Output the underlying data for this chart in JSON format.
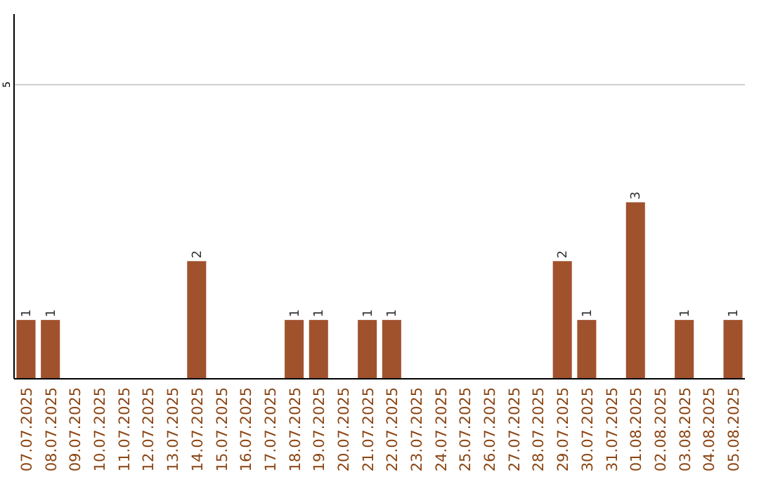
{
  "chart_data": {
    "type": "bar",
    "categories": [
      "07.07.2025",
      "08.07.2025",
      "09.07.2025",
      "10.07.2025",
      "11.07.2025",
      "12.07.2025",
      "13.07.2025",
      "14.07.2025",
      "15.07.2025",
      "16.07.2025",
      "17.07.2025",
      "18.07.2025",
      "19.07.2025",
      "20.07.2025",
      "21.07.2025",
      "22.07.2025",
      "23.07.2025",
      "24.07.2025",
      "25.07.2025",
      "26.07.2025",
      "27.07.2025",
      "28.07.2025",
      "29.07.2025",
      "30.07.2025",
      "31.07.2025",
      "01.08.2025",
      "02.08.2025",
      "03.08.2025",
      "04.08.2025",
      "05.08.2025"
    ],
    "values": [
      1,
      1,
      0,
      0,
      0,
      0,
      0,
      2,
      0,
      0,
      0,
      1,
      1,
      0,
      1,
      1,
      0,
      0,
      0,
      0,
      0,
      0,
      2,
      1,
      0,
      3,
      0,
      1,
      0,
      1
    ],
    "value_labels": [
      "1",
      "1",
      null,
      null,
      null,
      null,
      null,
      "2",
      null,
      null,
      null,
      "1",
      "1",
      null,
      "1",
      "1",
      null,
      null,
      null,
      null,
      null,
      null,
      "2",
      "1",
      null,
      "3",
      null,
      "1",
      null,
      "1"
    ],
    "color": "#a0522d",
    "ylim": [
      0,
      6.2
    ],
    "yticks": [
      5
    ],
    "grid": "y"
  }
}
